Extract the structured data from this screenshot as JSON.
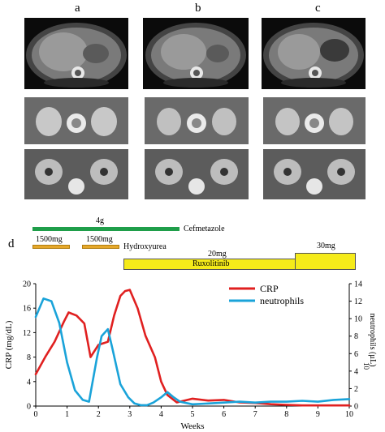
{
  "panel_labels": {
    "a": "a",
    "b": "b",
    "c": "c",
    "d": "d"
  },
  "treatment": {
    "cefmetazole": {
      "dose": "4g",
      "label": "Cefmetazole",
      "color": "#1f9e4a"
    },
    "hydroxyurea": {
      "dose1": "1500mg",
      "dose2": "1500mg",
      "label": "Hydroxyurea",
      "color": "#e6a82a"
    },
    "ruxolitinib": {
      "dose1": "20mg",
      "dose2": "30mg",
      "label": "Ruxolitinib",
      "color": "#f5eb1a"
    }
  },
  "chart_data": {
    "type": "line",
    "xlabel": "Weeks",
    "ylabel": "CRP (mg/dL)",
    "y2label": "neutrophils (µL)",
    "y2label_prefix": "10",
    "xlim": [
      0,
      10
    ],
    "ylim": [
      0,
      20
    ],
    "y2lim": [
      0,
      14
    ],
    "xticks": [
      "0",
      "1",
      "2",
      "3",
      "4",
      "5",
      "6",
      "7",
      "8",
      "9",
      "10"
    ],
    "yticks": [
      "0",
      "4",
      "8",
      "12",
      "16",
      "20"
    ],
    "y2ticks": [
      "0",
      "2",
      "4",
      "6",
      "8",
      "10",
      "12",
      "14"
    ],
    "series": [
      {
        "name": "CRP",
        "axis": "left",
        "color": "#e02020",
        "x": [
          0,
          0.3,
          0.6,
          0.9,
          1.05,
          1.3,
          1.55,
          1.75,
          2.0,
          2.3,
          2.5,
          2.7,
          2.85,
          3.0,
          3.25,
          3.5,
          3.8,
          4.0,
          4.2,
          4.5,
          5.0,
          5.5,
          6.0,
          6.5,
          7.0,
          7.5,
          8.0,
          8.5,
          9.0,
          9.5,
          10.0
        ],
        "values": [
          5.2,
          8.0,
          10.5,
          13.8,
          15.3,
          14.8,
          13.5,
          8.0,
          10.0,
          10.5,
          14.8,
          18.0,
          18.8,
          19.0,
          16.0,
          11.5,
          8.0,
          4.0,
          1.8,
          0.6,
          1.2,
          0.9,
          1.0,
          0.6,
          0.5,
          0.3,
          0.2,
          0.1,
          0.1,
          0.1,
          0.1
        ]
      },
      {
        "name": "neutrophils",
        "axis": "right",
        "color": "#1aa3d9",
        "x": [
          0,
          0.25,
          0.5,
          0.75,
          1.0,
          1.25,
          1.5,
          1.7,
          1.95,
          2.1,
          2.3,
          2.45,
          2.7,
          2.95,
          3.15,
          3.35,
          3.55,
          3.75,
          4.0,
          4.2,
          4.4,
          4.6,
          5.0,
          5.5,
          6.0,
          6.5,
          7.0,
          7.5,
          8.0,
          8.5,
          9.0,
          9.5,
          10.0
        ],
        "values": [
          10.2,
          12.3,
          12.0,
          9.5,
          5.0,
          1.8,
          0.7,
          0.5,
          5.5,
          8.0,
          8.8,
          6.5,
          2.5,
          1.0,
          0.3,
          0.1,
          0.1,
          0.4,
          1.0,
          1.6,
          1.0,
          0.5,
          0.2,
          0.3,
          0.4,
          0.5,
          0.4,
          0.5,
          0.5,
          0.6,
          0.5,
          0.7,
          0.8
        ]
      }
    ],
    "legend_placement": "top-right",
    "grid": false
  }
}
